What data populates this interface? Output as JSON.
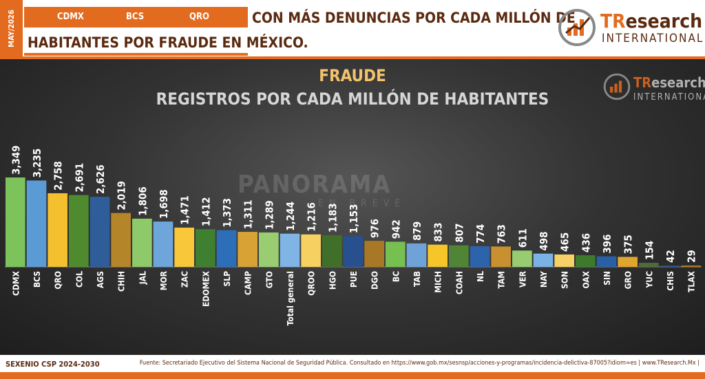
{
  "header": {
    "date_tab": "MAY/2026",
    "tags": [
      "CDMX",
      "BCS",
      "QRO"
    ],
    "title_line1": "CON MÁS DENUNCIAS POR CADA MILLÓN DE",
    "title_line2": "HABITANTES POR FRAUDE EN MÉXICO."
  },
  "logo": {
    "tr": "TR",
    "rest": "esearch",
    "intl": "INTERNATIONAL"
  },
  "watermark": {
    "name": "PANORAMA",
    "sub": "EN BREVE"
  },
  "footer": {
    "left": "SEXENIO CSP 2024-2030",
    "right": "Fuente: Secretariado Ejecutivo del Sistema Nacional de Seguridad Pública. Consultado en https://www.gob.mx/sesnsp/acciones-y-programas/incidencia-delictiva-87005?idiom=es | www.TResearch.Mx |"
  },
  "colors": {
    "accent": "#e36b1f",
    "dark_brown": "#5a2a10",
    "title_gold": "#f2c36b"
  },
  "chart_data": {
    "type": "bar",
    "title": "FRAUDE",
    "subtitle": "REGISTROS POR CADA MILLÓN DE HABITANTES",
    "categories": [
      "CDMX",
      "BCS",
      "QRO",
      "COL",
      "AGS",
      "CHIH",
      "JAL",
      "MOR",
      "ZAC",
      "EDOMEX",
      "SLP",
      "CAMP",
      "GTO",
      "Total general",
      "QROO",
      "HGO",
      "PUE",
      "DGO",
      "BC",
      "TAB",
      "MICH",
      "COAH",
      "NL",
      "TAM",
      "VER",
      "NAY",
      "SON",
      "OAX",
      "SIN",
      "GRO",
      "YUC",
      "CHIS",
      "TLAX"
    ],
    "values": [
      3349,
      3235,
      2758,
      2691,
      2626,
      2019,
      1806,
      1698,
      1471,
      1412,
      1373,
      1311,
      1289,
      1244,
      1216,
      1183,
      1153,
      976,
      942,
      879,
      833,
      807,
      774,
      763,
      611,
      498,
      465,
      436,
      396,
      375,
      154,
      42,
      29
    ],
    "value_labels": [
      "3,349",
      "3,235",
      "2,758",
      "2,691",
      "2,626",
      "2,019",
      "1,806",
      "1,698",
      "1,471",
      "1,412",
      "1,373",
      "1,311",
      "1,289",
      "1,244",
      "1,216",
      "1,183",
      "1,153",
      "976",
      "942",
      "879",
      "833",
      "807",
      "774",
      "763",
      "611",
      "498",
      "465",
      "436",
      "396",
      "375",
      "154",
      "42",
      "29"
    ],
    "bar_colors": [
      "#7dc35b",
      "#5a9bd5",
      "#f4c030",
      "#4f8a2e",
      "#2f5d9a",
      "#b5852a",
      "#8ec96a",
      "#6ea6dc",
      "#f8c83a",
      "#3f7f30",
      "#2c6fb8",
      "#d9a235",
      "#9acd72",
      "#7fb4e4",
      "#f6d060",
      "#3f6f28",
      "#28508f",
      "#a87826",
      "#76c050",
      "#6fa3d8",
      "#f5c52a",
      "#4f8535",
      "#2d63aa",
      "#c99030",
      "#98cc70",
      "#7ab2e6",
      "#f7d066",
      "#3d7a2c",
      "#2a5fa6",
      "#e0a52f",
      "#4f6b3a",
      "#2f4f80",
      "#b07a20"
    ],
    "ylim": [
      0,
      3500
    ],
    "grid": false
  }
}
